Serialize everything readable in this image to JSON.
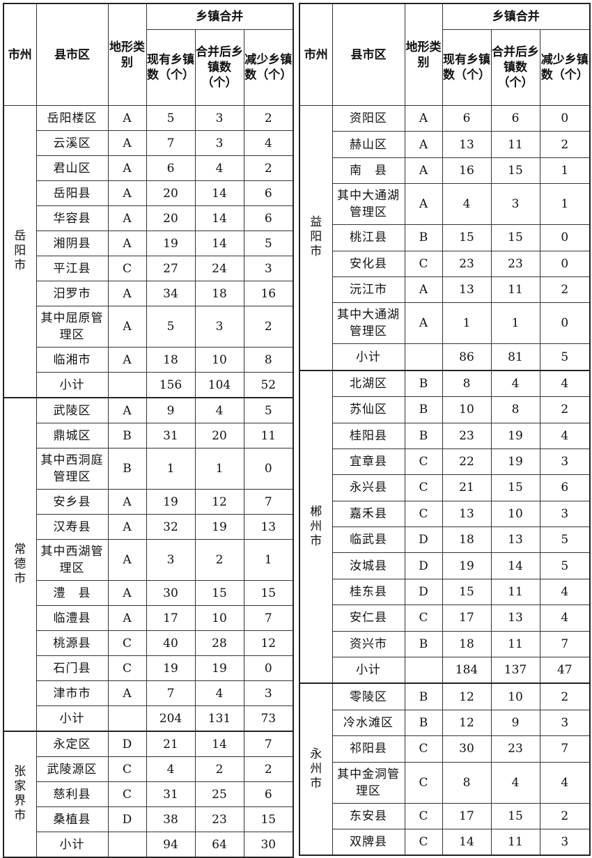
{
  "header": {
    "city": "市州",
    "district": "县市区",
    "terrain": "地形类别",
    "merge_group": "乡镇合并",
    "existing": "现有乡镇数（个）",
    "merged": "合并后乡镇数（个）",
    "reduced": "减少乡镇数（个）"
  },
  "tables": [
    {
      "groups": [
        {
          "city": "岳阳市",
          "rows": [
            {
              "district": "岳阳楼区",
              "terrain": "A",
              "existing": "5",
              "merged": "3",
              "reduced": "2"
            },
            {
              "district": "云溪区",
              "terrain": "A",
              "existing": "7",
              "merged": "3",
              "reduced": "4"
            },
            {
              "district": "君山区",
              "terrain": "A",
              "existing": "6",
              "merged": "4",
              "reduced": "2"
            },
            {
              "district": "岳阳县",
              "terrain": "A",
              "existing": "20",
              "merged": "14",
              "reduced": "6"
            },
            {
              "district": "华容县",
              "terrain": "A",
              "existing": "20",
              "merged": "14",
              "reduced": "6"
            },
            {
              "district": "湘阴县",
              "terrain": "A",
              "existing": "19",
              "merged": "14",
              "reduced": "5"
            },
            {
              "district": "平江县",
              "terrain": "C",
              "existing": "27",
              "merged": "24",
              "reduced": "3"
            },
            {
              "district": "汨罗市",
              "terrain": "A",
              "existing": "34",
              "merged": "18",
              "reduced": "16"
            },
            {
              "district": "其中屈原管理区",
              "terrain": "A",
              "existing": "5",
              "merged": "3",
              "reduced": "2"
            },
            {
              "district": "临湘市",
              "terrain": "A",
              "existing": "18",
              "merged": "10",
              "reduced": "8"
            }
          ],
          "subtotal": {
            "label": "小计",
            "existing": "156",
            "merged": "104",
            "reduced": "52"
          }
        },
        {
          "city": "常德市",
          "rows": [
            {
              "district": "武陵区",
              "terrain": "A",
              "existing": "9",
              "merged": "4",
              "reduced": "5"
            },
            {
              "district": "鼎城区",
              "terrain": "B",
              "existing": "31",
              "merged": "20",
              "reduced": "11"
            },
            {
              "district": "其中西洞庭管理区",
              "terrain": "B",
              "existing": "1",
              "merged": "1",
              "reduced": "0"
            },
            {
              "district": "安乡县",
              "terrain": "A",
              "existing": "19",
              "merged": "12",
              "reduced": "7"
            },
            {
              "district": "汉寿县",
              "terrain": "A",
              "existing": "32",
              "merged": "19",
              "reduced": "13"
            },
            {
              "district": "其中西湖管理区",
              "terrain": "A",
              "existing": "3",
              "merged": "2",
              "reduced": "1"
            },
            {
              "district": "澧　县",
              "terrain": "A",
              "existing": "30",
              "merged": "15",
              "reduced": "15"
            },
            {
              "district": "临澧县",
              "terrain": "A",
              "existing": "17",
              "merged": "10",
              "reduced": "7"
            },
            {
              "district": "桃源县",
              "terrain": "C",
              "existing": "40",
              "merged": "28",
              "reduced": "12"
            },
            {
              "district": "石门县",
              "terrain": "C",
              "existing": "19",
              "merged": "19",
              "reduced": "0"
            },
            {
              "district": "津市市",
              "terrain": "A",
              "existing": "7",
              "merged": "4",
              "reduced": "3"
            }
          ],
          "subtotal": {
            "label": "小计",
            "existing": "204",
            "merged": "131",
            "reduced": "73"
          }
        },
        {
          "city": "张家界市",
          "rows": [
            {
              "district": "永定区",
              "terrain": "D",
              "existing": "21",
              "merged": "14",
              "reduced": "7"
            },
            {
              "district": "武陵源区",
              "terrain": "C",
              "existing": "4",
              "merged": "2",
              "reduced": "2"
            },
            {
              "district": "慈利县",
              "terrain": "C",
              "existing": "31",
              "merged": "25",
              "reduced": "6"
            },
            {
              "district": "桑植县",
              "terrain": "D",
              "existing": "38",
              "merged": "23",
              "reduced": "15"
            }
          ],
          "subtotal": {
            "label": "小计",
            "existing": "94",
            "merged": "64",
            "reduced": "30"
          }
        }
      ]
    },
    {
      "groups": [
        {
          "city": "益阳市",
          "rows": [
            {
              "district": "资阳区",
              "terrain": "A",
              "existing": "6",
              "merged": "6",
              "reduced": "0"
            },
            {
              "district": "赫山区",
              "terrain": "A",
              "existing": "13",
              "merged": "11",
              "reduced": "2"
            },
            {
              "district": "南　县",
              "terrain": "A",
              "existing": "16",
              "merged": "15",
              "reduced": "1"
            },
            {
              "district": "其中大通湖管理区",
              "terrain": "A",
              "existing": "4",
              "merged": "3",
              "reduced": "1"
            },
            {
              "district": "桃江县",
              "terrain": "B",
              "existing": "15",
              "merged": "15",
              "reduced": "0"
            },
            {
              "district": "安化县",
              "terrain": "C",
              "existing": "23",
              "merged": "23",
              "reduced": "0"
            },
            {
              "district": "沅江市",
              "terrain": "A",
              "existing": "13",
              "merged": "11",
              "reduced": "2"
            },
            {
              "district": "其中大通湖管理区",
              "terrain": "A",
              "existing": "1",
              "merged": "1",
              "reduced": "0"
            }
          ],
          "subtotal": {
            "label": "小计",
            "existing": "86",
            "merged": "81",
            "reduced": "5"
          }
        },
        {
          "city": "郴州市",
          "rows": [
            {
              "district": "北湖区",
              "terrain": "B",
              "existing": "8",
              "merged": "4",
              "reduced": "4"
            },
            {
              "district": "苏仙区",
              "terrain": "B",
              "existing": "10",
              "merged": "8",
              "reduced": "2"
            },
            {
              "district": "桂阳县",
              "terrain": "B",
              "existing": "23",
              "merged": "19",
              "reduced": "4"
            },
            {
              "district": "宜章县",
              "terrain": "C",
              "existing": "22",
              "merged": "19",
              "reduced": "3"
            },
            {
              "district": "永兴县",
              "terrain": "C",
              "existing": "21",
              "merged": "15",
              "reduced": "6"
            },
            {
              "district": "嘉禾县",
              "terrain": "C",
              "existing": "13",
              "merged": "10",
              "reduced": "3"
            },
            {
              "district": "临武县",
              "terrain": "D",
              "existing": "18",
              "merged": "13",
              "reduced": "5"
            },
            {
              "district": "汝城县",
              "terrain": "D",
              "existing": "19",
              "merged": "14",
              "reduced": "5"
            },
            {
              "district": "桂东县",
              "terrain": "D",
              "existing": "15",
              "merged": "11",
              "reduced": "4"
            },
            {
              "district": "安仁县",
              "terrain": "C",
              "existing": "17",
              "merged": "13",
              "reduced": "4"
            },
            {
              "district": "资兴市",
              "terrain": "B",
              "existing": "18",
              "merged": "11",
              "reduced": "7"
            }
          ],
          "subtotal": {
            "label": "小计",
            "existing": "184",
            "merged": "137",
            "reduced": "47"
          }
        },
        {
          "city": "永州市",
          "rows": [
            {
              "district": "零陵区",
              "terrain": "B",
              "existing": "12",
              "merged": "10",
              "reduced": "2"
            },
            {
              "district": "冷水滩区",
              "terrain": "B",
              "existing": "12",
              "merged": "9",
              "reduced": "3"
            },
            {
              "district": "祁阳县",
              "terrain": "C",
              "existing": "30",
              "merged": "23",
              "reduced": "7"
            },
            {
              "district": "其中金洞管理区",
              "terrain": "C",
              "existing": "8",
              "merged": "4",
              "reduced": "4"
            },
            {
              "district": "东安县",
              "terrain": "C",
              "existing": "17",
              "merged": "15",
              "reduced": "2"
            },
            {
              "district": "双牌县",
              "terrain": "C",
              "existing": "14",
              "merged": "11",
              "reduced": "3"
            }
          ],
          "subtotal": null
        }
      ]
    }
  ]
}
